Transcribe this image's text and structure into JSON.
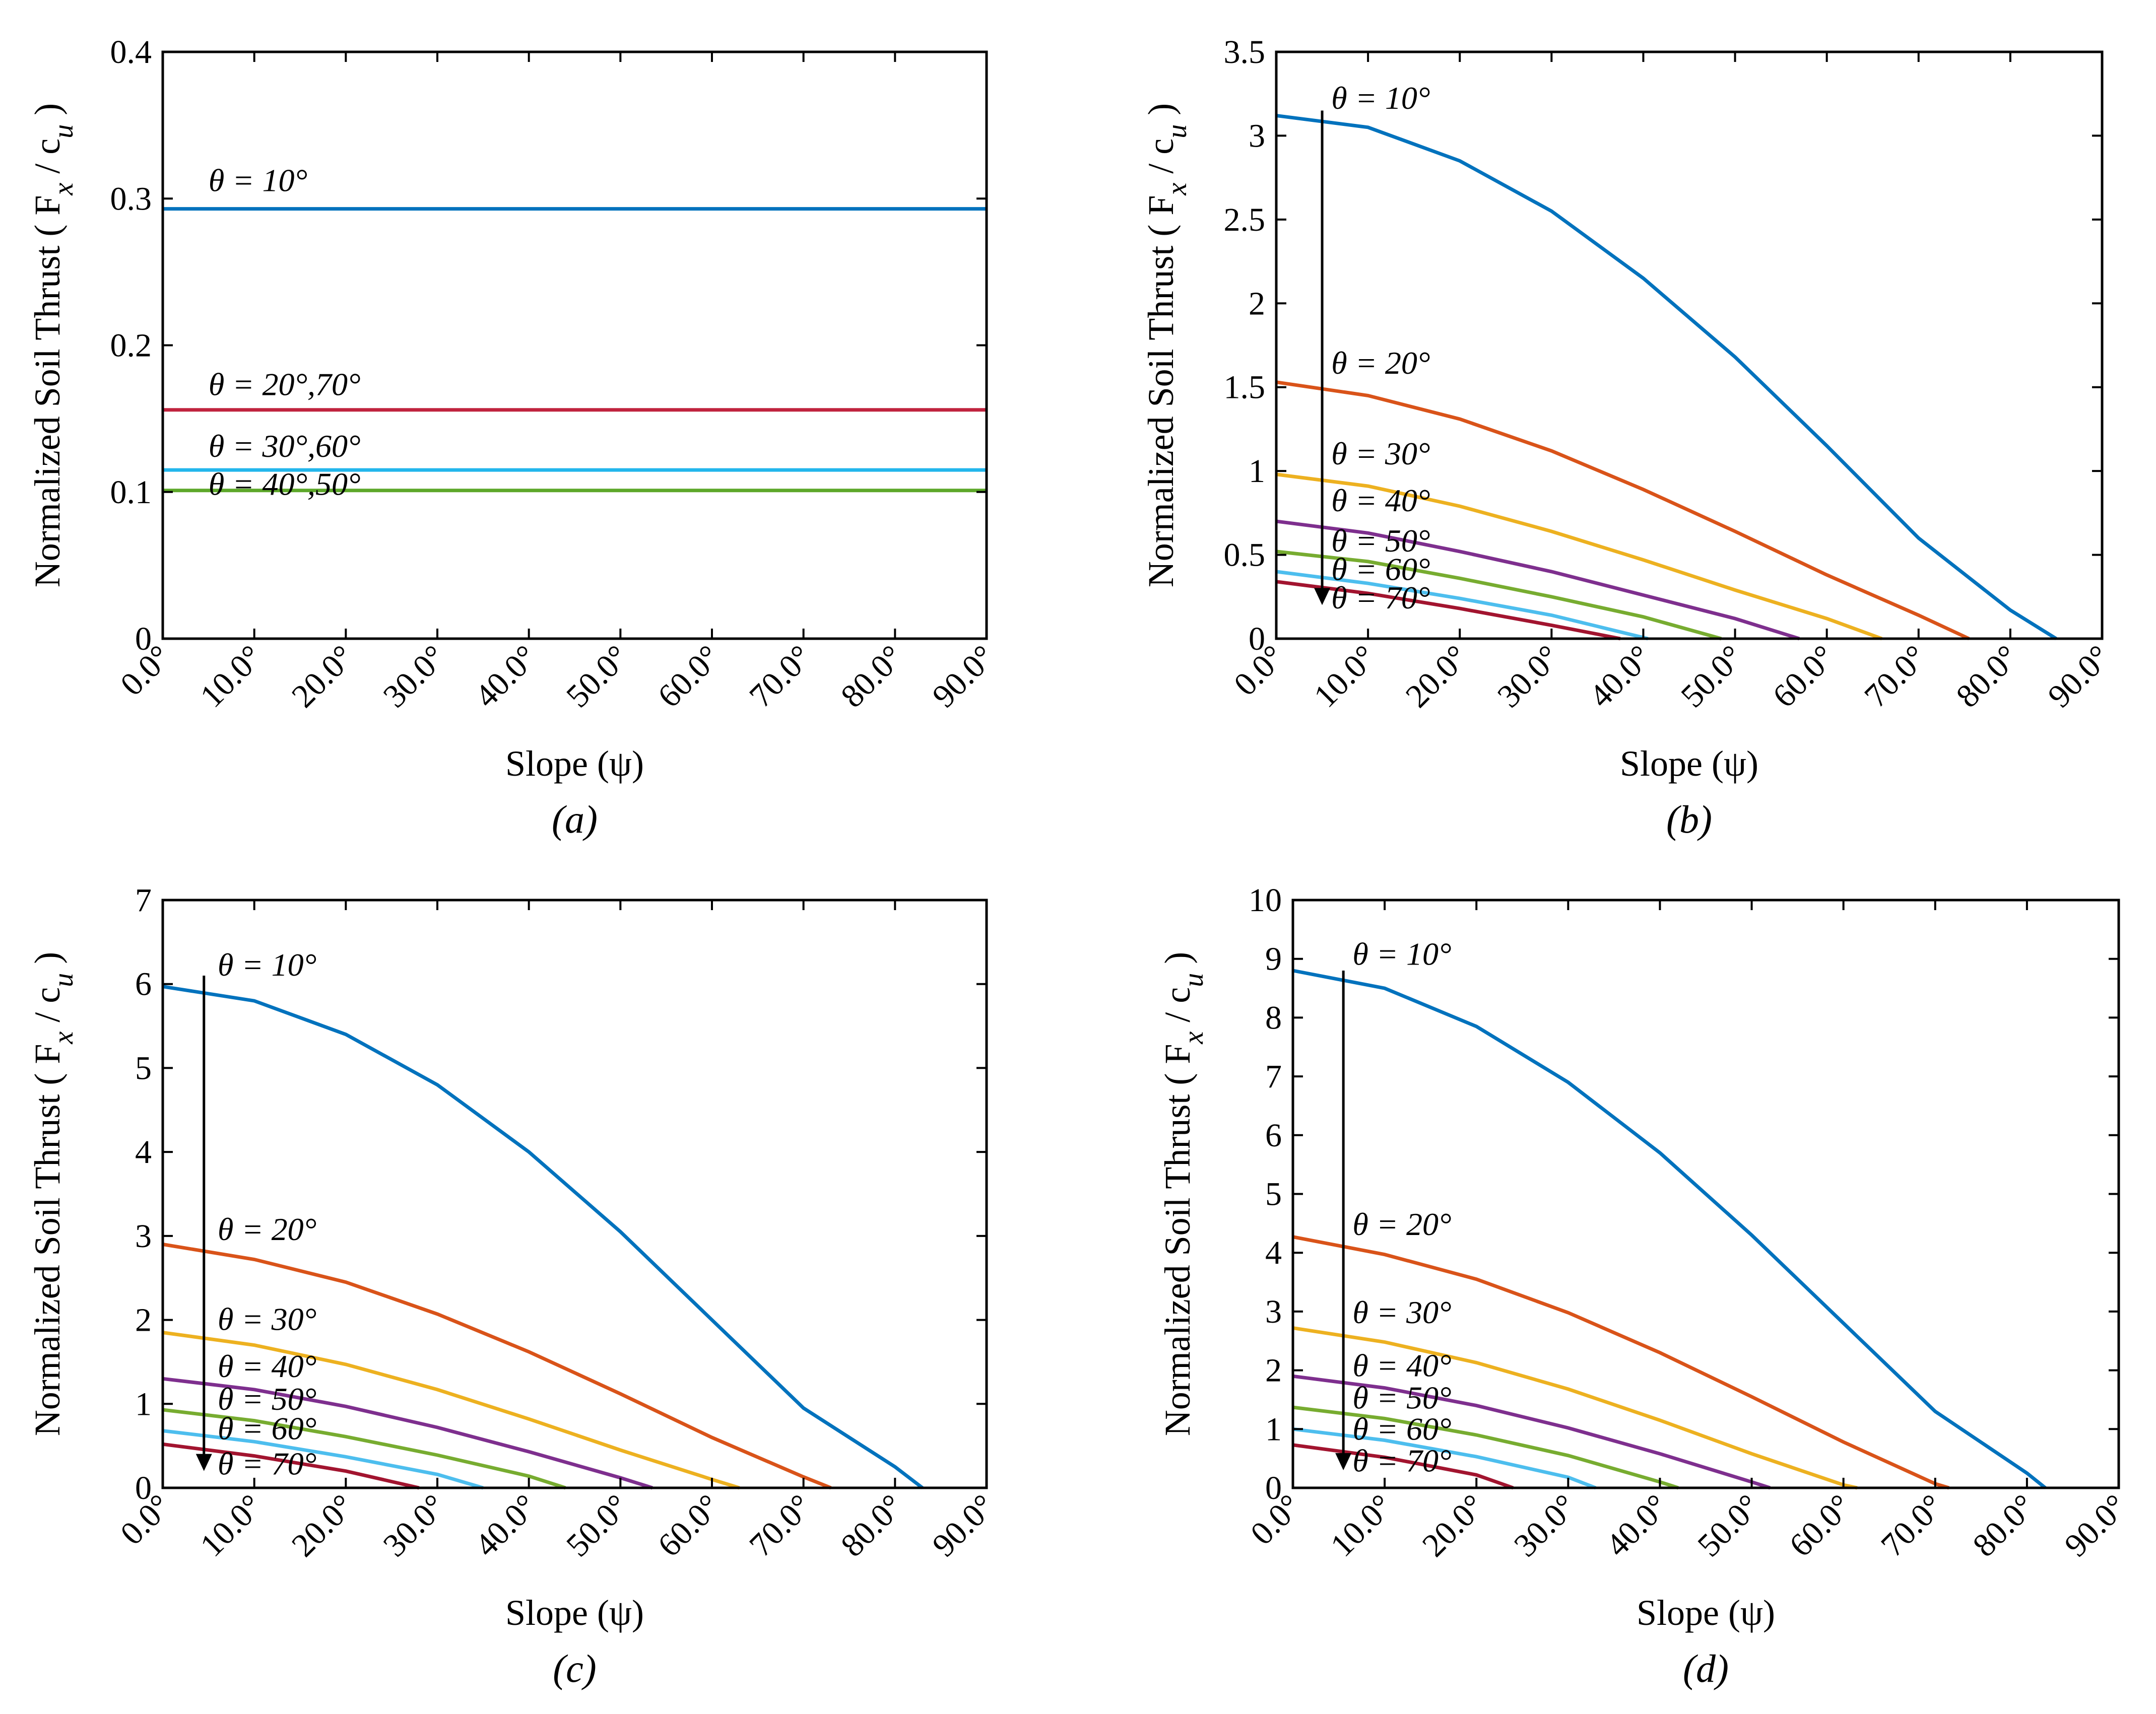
{
  "figure": {
    "colors": {
      "10": "#0072BD",
      "20": "#D95319",
      "30": "#EDB120",
      "40": "#7E2F8E",
      "50": "#77AC30",
      "60": "#4DBEEE",
      "70": "#A2142F",
      "a_20_70": "#C0233E",
      "a_30_60": "#22B6EC",
      "a_40_50": "#5DA82A"
    }
  },
  "chart_data": [
    {
      "id": "a",
      "type": "line",
      "caption": "(a)",
      "xlabel": "Slope (ψ)",
      "ylabel_main": "Normalized Soil Thrust ( F",
      "ylabel_sub_x": "x",
      "ylabel_slash": " / c",
      "ylabel_sub_u": "u",
      "ylabel_close": " )",
      "xlim": [
        0,
        90
      ],
      "ylim": [
        0,
        0.4
      ],
      "xticks": [
        0,
        10,
        20,
        30,
        40,
        50,
        60,
        70,
        80,
        90
      ],
      "xtick_labels": [
        "0.0°",
        "10.0°",
        "20.0°",
        "30.0°",
        "40.0°",
        "50.0°",
        "60.0°",
        "70.0°",
        "80.0°",
        "90.0°"
      ],
      "yticks": [
        0,
        0.1,
        0.2,
        0.3,
        0.4
      ],
      "ytick_labels": [
        "0",
        "0.1",
        "0.2",
        "0.3",
        "0.4"
      ],
      "arrow": false,
      "series": [
        {
          "name": "θ = 10°",
          "color_key": "10",
          "x": [
            0,
            90
          ],
          "y": [
            0.293,
            0.293
          ],
          "label_x": 5,
          "label_y": 0.305
        },
        {
          "name": "θ = 20°,70°",
          "color_key": "a_20_70",
          "x": [
            0,
            90
          ],
          "y": [
            0.156,
            0.156
          ],
          "label_x": 5,
          "label_y": 0.166
        },
        {
          "name": "θ = 30°,60°",
          "color_key": "a_30_60",
          "x": [
            0,
            90
          ],
          "y": [
            0.115,
            0.115
          ],
          "label_x": 5,
          "label_y": 0.124
        },
        {
          "name": "θ = 40°,50°",
          "color_key": "a_40_50",
          "x": [
            0,
            90
          ],
          "y": [
            0.101,
            0.101
          ],
          "label_x": 5,
          "label_y": 0.098
        }
      ]
    },
    {
      "id": "b",
      "type": "line",
      "caption": "(b)",
      "xlabel": "Slope (ψ)",
      "ylabel_main": "Normalized Soil Thrust ( F",
      "ylabel_sub_x": "x",
      "ylabel_slash": " / c",
      "ylabel_sub_u": "u",
      "ylabel_close": " )",
      "xlim": [
        0,
        90
      ],
      "ylim": [
        0,
        3.5
      ],
      "xticks": [
        0,
        10,
        20,
        30,
        40,
        50,
        60,
        70,
        80,
        90
      ],
      "xtick_labels": [
        "0.0°",
        "10.0°",
        "20.0°",
        "30.0°",
        "40.0°",
        "50.0°",
        "60.0°",
        "70.0°",
        "80.0°",
        "90.0°"
      ],
      "yticks": [
        0,
        0.5,
        1,
        1.5,
        2,
        2.5,
        3,
        3.5
      ],
      "ytick_labels": [
        "0",
        "0.5",
        "1",
        "1.5",
        "2",
        "2.5",
        "3",
        "3.5"
      ],
      "arrow": true,
      "arrow_x": 5,
      "arrow_y_start": 3.15,
      "arrow_y_end": 0.2,
      "series": [
        {
          "name": "θ = 10°",
          "color_key": "10",
          "x": [
            0,
            10,
            20,
            30,
            40,
            50,
            60,
            70,
            80,
            85
          ],
          "y": [
            3.12,
            3.05,
            2.85,
            2.55,
            2.15,
            1.68,
            1.15,
            0.6,
            0.17,
            0
          ],
          "label_x": 6,
          "label_y": 3.16
        },
        {
          "name": "θ = 20°",
          "color_key": "20",
          "x": [
            0,
            10,
            20,
            30,
            40,
            50,
            60,
            70,
            75.5
          ],
          "y": [
            1.53,
            1.45,
            1.31,
            1.12,
            0.89,
            0.64,
            0.38,
            0.14,
            0
          ],
          "label_x": 6,
          "label_y": 1.58
        },
        {
          "name": "θ = 30°",
          "color_key": "30",
          "x": [
            0,
            10,
            20,
            30,
            40,
            50,
            60,
            66
          ],
          "y": [
            0.98,
            0.91,
            0.79,
            0.64,
            0.47,
            0.29,
            0.12,
            0
          ],
          "label_x": 6,
          "label_y": 1.04
        },
        {
          "name": "θ = 40°",
          "color_key": "40",
          "x": [
            0,
            10,
            20,
            30,
            40,
            50,
            57
          ],
          "y": [
            0.7,
            0.63,
            0.52,
            0.4,
            0.26,
            0.12,
            0
          ],
          "label_x": 6,
          "label_y": 0.76
        },
        {
          "name": "θ = 50°",
          "color_key": "50",
          "x": [
            0,
            10,
            20,
            30,
            40,
            48.5
          ],
          "y": [
            0.52,
            0.46,
            0.36,
            0.25,
            0.13,
            0
          ],
          "label_x": 6,
          "label_y": 0.52
        },
        {
          "name": "θ = 60°",
          "color_key": "60",
          "x": [
            0,
            10,
            20,
            30,
            40.5
          ],
          "y": [
            0.4,
            0.33,
            0.24,
            0.14,
            0
          ],
          "label_x": 6,
          "label_y": 0.35
        },
        {
          "name": "θ = 70°",
          "color_key": "70",
          "x": [
            0,
            10,
            20,
            30,
            37.5
          ],
          "y": [
            0.34,
            0.27,
            0.18,
            0.08,
            0
          ],
          "label_x": 6,
          "label_y": 0.18
        }
      ]
    },
    {
      "id": "c",
      "type": "line",
      "caption": "(c)",
      "xlabel": "Slope (ψ)",
      "ylabel_main": "Normalized Soil Thrust ( F",
      "ylabel_sub_x": "x",
      "ylabel_slash": " / c",
      "ylabel_sub_u": "u",
      "ylabel_close": " )",
      "xlim": [
        0,
        90
      ],
      "ylim": [
        0,
        7
      ],
      "xticks": [
        0,
        10,
        20,
        30,
        40,
        50,
        60,
        70,
        80,
        90
      ],
      "xtick_labels": [
        "0.0°",
        "10.0°",
        "20.0°",
        "30.0°",
        "40.0°",
        "50.0°",
        "60.0°",
        "70.0°",
        "80.0°",
        "90.0°"
      ],
      "yticks": [
        0,
        1,
        2,
        3,
        4,
        5,
        6,
        7
      ],
      "ytick_labels": [
        "0",
        "1",
        "2",
        "3",
        "4",
        "5",
        "6",
        "7"
      ],
      "arrow": true,
      "arrow_x": 4.5,
      "arrow_y_start": 6.1,
      "arrow_y_end": 0.2,
      "series": [
        {
          "name": "θ = 10°",
          "color_key": "10",
          "x": [
            0,
            10,
            20,
            30,
            40,
            50,
            60,
            70,
            80,
            83
          ],
          "y": [
            5.97,
            5.8,
            5.4,
            4.8,
            4.0,
            3.05,
            2.0,
            0.95,
            0.25,
            0
          ],
          "label_x": 6,
          "label_y": 6.1
        },
        {
          "name": "θ = 20°",
          "color_key": "20",
          "x": [
            0,
            10,
            20,
            30,
            40,
            50,
            60,
            70,
            73
          ],
          "y": [
            2.9,
            2.72,
            2.45,
            2.07,
            1.62,
            1.12,
            0.6,
            0.13,
            0
          ],
          "label_x": 6,
          "label_y": 2.95
        },
        {
          "name": "θ = 30°",
          "color_key": "30",
          "x": [
            0,
            10,
            20,
            30,
            40,
            50,
            60,
            63
          ],
          "y": [
            1.85,
            1.7,
            1.47,
            1.17,
            0.82,
            0.45,
            0.1,
            0
          ],
          "label_x": 6,
          "label_y": 1.88
        },
        {
          "name": "θ = 40°",
          "color_key": "40",
          "x": [
            0,
            10,
            20,
            30,
            40,
            50,
            53.5
          ],
          "y": [
            1.3,
            1.17,
            0.97,
            0.72,
            0.43,
            0.12,
            0
          ],
          "label_x": 6,
          "label_y": 1.32
        },
        {
          "name": "θ = 50°",
          "color_key": "50",
          "x": [
            0,
            10,
            20,
            30,
            40,
            44
          ],
          "y": [
            0.93,
            0.8,
            0.61,
            0.39,
            0.14,
            0
          ],
          "label_x": 6,
          "label_y": 0.93
        },
        {
          "name": "θ = 60°",
          "color_key": "60",
          "x": [
            0,
            10,
            20,
            30,
            35
          ],
          "y": [
            0.68,
            0.55,
            0.37,
            0.16,
            0
          ],
          "label_x": 6,
          "label_y": 0.58
        },
        {
          "name": "θ = 70°",
          "color_key": "70",
          "x": [
            0,
            10,
            20,
            28
          ],
          "y": [
            0.52,
            0.38,
            0.2,
            0
          ],
          "label_x": 6,
          "label_y": 0.16
        }
      ]
    },
    {
      "id": "d",
      "type": "line",
      "caption": "(d)",
      "xlabel": "Slope (ψ)",
      "ylabel_main": "Normalized Soil Thrust ( F",
      "ylabel_sub_x": "x",
      "ylabel_slash": " / c",
      "ylabel_sub_u": "u",
      "ylabel_close": " )",
      "xlim": [
        0,
        90
      ],
      "ylim": [
        0,
        10
      ],
      "xticks": [
        0,
        10,
        20,
        30,
        40,
        50,
        60,
        70,
        80,
        90
      ],
      "xtick_labels": [
        "0.0°",
        "10.0°",
        "20.0°",
        "30.0°",
        "40.0°",
        "50.0°",
        "60.0°",
        "70.0°",
        "80.0°",
        "90.0°"
      ],
      "yticks": [
        0,
        1,
        2,
        3,
        4,
        5,
        6,
        7,
        8,
        9,
        10
      ],
      "ytick_labels": [
        "0",
        "1",
        "2",
        "3",
        "4",
        "5",
        "6",
        "7",
        "8",
        "9",
        "10"
      ],
      "arrow": true,
      "arrow_x": 5.5,
      "arrow_y_start": 8.8,
      "arrow_y_end": 0.3,
      "series": [
        {
          "name": "θ = 10°",
          "color_key": "10",
          "x": [
            0,
            10,
            20,
            30,
            40,
            50,
            60,
            70,
            80,
            82
          ],
          "y": [
            8.8,
            8.5,
            7.85,
            6.9,
            5.7,
            4.3,
            2.8,
            1.3,
            0.25,
            0
          ],
          "label_x": 6.5,
          "label_y": 8.9
        },
        {
          "name": "θ = 20°",
          "color_key": "20",
          "x": [
            0,
            10,
            20,
            30,
            40,
            50,
            60,
            70,
            71.5
          ],
          "y": [
            4.27,
            3.97,
            3.55,
            2.98,
            2.3,
            1.55,
            0.78,
            0.07,
            0
          ],
          "label_x": 6.5,
          "label_y": 4.3
        },
        {
          "name": "θ = 30°",
          "color_key": "30",
          "x": [
            0,
            10,
            20,
            30,
            40,
            50,
            60,
            61.5
          ],
          "y": [
            2.72,
            2.48,
            2.13,
            1.68,
            1.15,
            0.58,
            0.05,
            0
          ],
          "label_x": 6.5,
          "label_y": 2.8
        },
        {
          "name": "θ = 40°",
          "color_key": "40",
          "x": [
            0,
            10,
            20,
            30,
            40,
            50,
            52
          ],
          "y": [
            1.9,
            1.7,
            1.4,
            1.02,
            0.58,
            0.1,
            0
          ],
          "label_x": 6.5,
          "label_y": 1.9
        },
        {
          "name": "θ = 50°",
          "color_key": "50",
          "x": [
            0,
            10,
            20,
            30,
            40,
            42
          ],
          "y": [
            1.37,
            1.18,
            0.9,
            0.55,
            0.1,
            0
          ],
          "label_x": 6.5,
          "label_y": 1.35
        },
        {
          "name": "θ = 60°",
          "color_key": "60",
          "x": [
            0,
            10,
            20,
            30,
            33
          ],
          "y": [
            1.0,
            0.81,
            0.53,
            0.18,
            0
          ],
          "label_x": 6.5,
          "label_y": 0.82
        },
        {
          "name": "θ = 70°",
          "color_key": "70",
          "x": [
            0,
            10,
            20,
            24
          ],
          "y": [
            0.73,
            0.52,
            0.22,
            0
          ],
          "label_x": 6.5,
          "label_y": 0.28
        }
      ]
    }
  ]
}
